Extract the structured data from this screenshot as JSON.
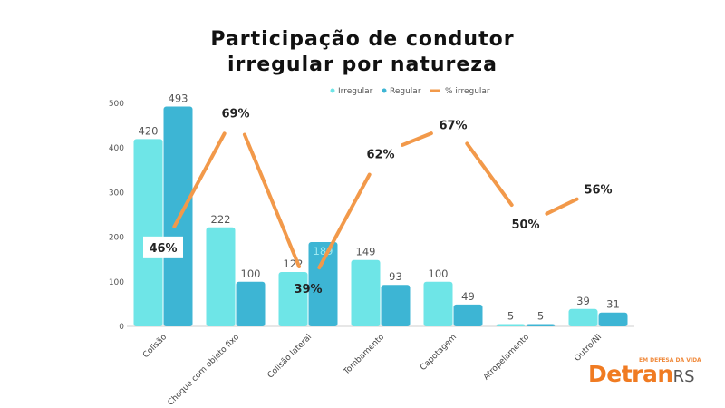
{
  "title_line1": "Participação de condutor",
  "title_line2": "irregular por natureza",
  "colors": {
    "irregular": "#6ee5e7",
    "regular": "#3db5d4",
    "pct_line": "#f2994a"
  },
  "logo": {
    "tagline": "EM DEFESA DA VIDA",
    "word_main": "Detran",
    "word_suffix": "RS"
  },
  "chart_data": {
    "type": "bar",
    "categories": [
      "Colisão",
      "Choque com objeto fixo",
      "Colisão lateral",
      "Tombamento",
      "Capotagem",
      "Atropelamento",
      "Outro/NI"
    ],
    "series": [
      {
        "name": "Irregular",
        "values": [
          420,
          222,
          122,
          149,
          100,
          5,
          39
        ]
      },
      {
        "name": "Regular",
        "values": [
          493,
          100,
          189,
          93,
          49,
          5,
          31
        ]
      },
      {
        "name": "% irregular",
        "type": "line",
        "values": [
          46,
          69,
          39,
          62,
          67,
          50,
          56
        ],
        "labels": [
          "46%",
          "69%",
          "39%",
          "62%",
          "67%",
          "50%",
          "56%"
        ]
      }
    ],
    "ylim": [
      0,
      500
    ],
    "yticks": [
      0,
      100,
      200,
      300,
      400,
      500
    ],
    "legend": "top-right",
    "grid": false
  }
}
